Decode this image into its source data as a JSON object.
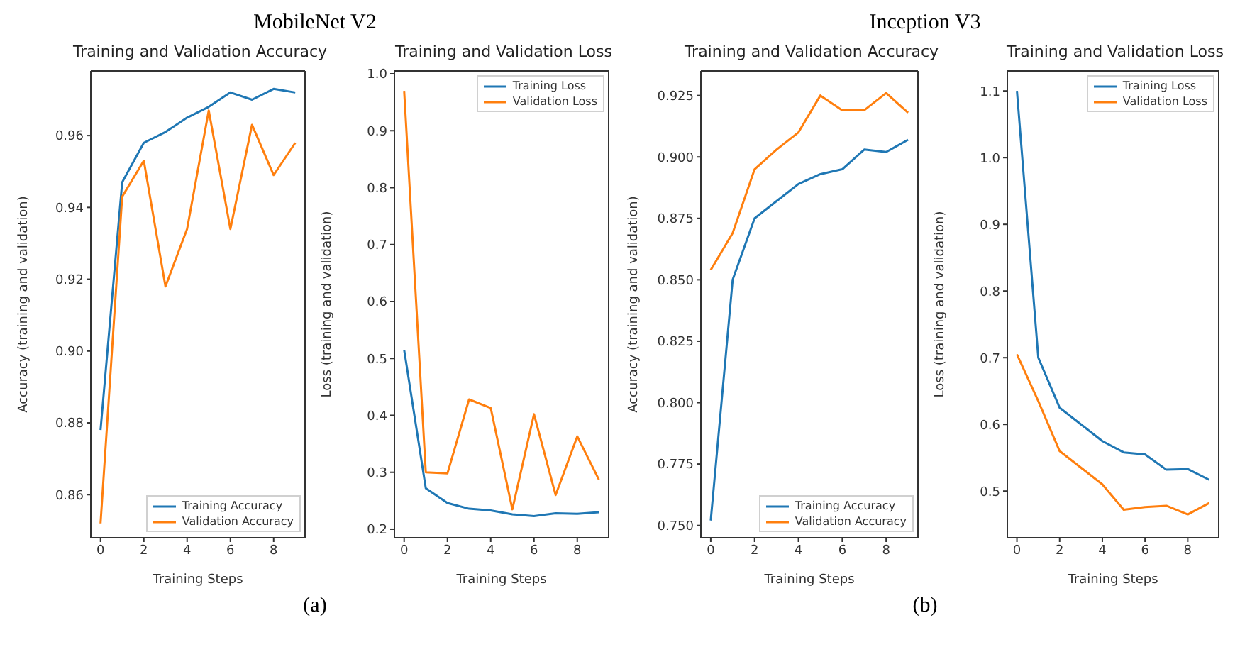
{
  "chart_data": [
    {
      "type": "line",
      "title": "Training and Validation Accuracy",
      "xlabel": "Training Steps",
      "ylabel": "Accuracy (training and validation)",
      "annotations": [
        "MobileNet V2",
        "(a)"
      ],
      "x": [
        0,
        1,
        2,
        3,
        4,
        5,
        6,
        7,
        8,
        9
      ],
      "series": [
        {
          "name": "Training Accuracy",
          "color": "#1f77b4",
          "values": [
            0.878,
            0.947,
            0.958,
            0.961,
            0.965,
            0.968,
            0.972,
            0.97,
            0.973,
            0.972
          ]
        },
        {
          "name": "Validation Accuracy",
          "color": "#ff7f0e",
          "values": [
            0.852,
            0.943,
            0.953,
            0.918,
            0.934,
            0.967,
            0.934,
            0.963,
            0.949,
            0.958
          ]
        }
      ],
      "xlim": [
        -0.45,
        9.45
      ],
      "xticks": [
        0,
        2,
        4,
        6,
        8
      ],
      "ylim": [
        0.848,
        0.978
      ],
      "yticks": [
        0.86,
        0.88,
        {
          "value": 0.9,
          "label": "0.90"
        },
        0.92,
        0.94,
        0.96
      ],
      "grid": false,
      "legend": "bottom right",
      "marker": "none",
      "line_style": "solid"
    },
    {
      "type": "line",
      "title": "Training and Validation Loss",
      "xlabel": "Training Steps",
      "ylabel": "Loss (training and validation)",
      "x": [
        0,
        1,
        2,
        3,
        4,
        5,
        6,
        7,
        8,
        9
      ],
      "series": [
        {
          "name": "Training Loss",
          "color": "#1f77b4",
          "values": [
            0.515,
            0.272,
            0.246,
            0.236,
            0.233,
            0.226,
            0.223,
            0.228,
            0.227,
            0.23
          ]
        },
        {
          "name": "Validation Loss",
          "color": "#ff7f0e",
          "values": [
            0.97,
            0.3,
            0.298,
            0.428,
            0.413,
            0.235,
            0.402,
            0.26,
            0.363,
            0.287
          ]
        }
      ],
      "xlim": [
        -0.45,
        9.45
      ],
      "xticks": [
        0,
        2,
        4,
        6,
        8
      ],
      "ylim": [
        0.185,
        1.005
      ],
      "yticks": [
        0.2,
        0.3,
        0.4,
        0.5,
        0.6,
        0.7,
        0.8,
        0.9,
        {
          "value": 1,
          "label": "1.0"
        }
      ],
      "grid": false,
      "legend": "top right",
      "marker": "none",
      "line_style": "solid"
    },
    {
      "type": "line",
      "title": "Training and Validation Accuracy",
      "xlabel": "Training Steps",
      "ylabel": "Accuracy (training and validation)",
      "annotations": [
        "Inception V3",
        "(b)"
      ],
      "x": [
        0,
        1,
        2,
        3,
        4,
        5,
        6,
        7,
        8,
        9
      ],
      "series": [
        {
          "name": "Training Accuracy",
          "color": "#1f77b4",
          "values": [
            0.752,
            0.85,
            0.875,
            0.882,
            0.889,
            0.893,
            0.895,
            0.903,
            0.902,
            0.907
          ]
        },
        {
          "name": "Validation Accuracy",
          "color": "#ff7f0e",
          "values": [
            0.854,
            0.869,
            0.895,
            0.903,
            0.91,
            0.925,
            0.919,
            0.919,
            0.926,
            0.918
          ]
        }
      ],
      "xlim": [
        -0.45,
        9.45
      ],
      "xticks": [
        0,
        2,
        4,
        6,
        8
      ],
      "ylim": [
        0.745,
        0.935
      ],
      "yticks": [
        {
          "value": 0.75,
          "label": "0.750"
        },
        0.775,
        {
          "value": 0.8,
          "label": "0.800"
        },
        0.825,
        {
          "value": 0.85,
          "label": "0.850"
        },
        0.875,
        {
          "value": 0.9,
          "label": "0.900"
        },
        0.925
      ],
      "grid": false,
      "legend": "bottom right",
      "marker": "none",
      "line_style": "solid"
    },
    {
      "type": "line",
      "title": "Training and Validation Loss",
      "xlabel": "Training Steps",
      "ylabel": "Loss (training and validation)",
      "x": [
        0,
        1,
        2,
        3,
        4,
        5,
        6,
        7,
        8,
        9
      ],
      "series": [
        {
          "name": "Training Loss",
          "color": "#1f77b4",
          "values": [
            1.1,
            0.7,
            0.625,
            0.6,
            0.575,
            0.558,
            0.555,
            0.532,
            0.533,
            0.517
          ]
        },
        {
          "name": "Validation Loss",
          "color": "#ff7f0e",
          "values": [
            0.705,
            0.635,
            0.56,
            0.535,
            0.51,
            0.472,
            0.476,
            0.478,
            0.465,
            0.482
          ]
        }
      ],
      "xlim": [
        -0.45,
        9.45
      ],
      "xticks": [
        0,
        2,
        4,
        6,
        8
      ],
      "ylim": [
        0.43,
        1.13
      ],
      "yticks": [
        0.5,
        0.6,
        0.7,
        0.8,
        0.9,
        {
          "value": 1,
          "label": "1.0"
        },
        1.1
      ],
      "grid": false,
      "legend": "top right",
      "marker": "none",
      "line_style": "solid"
    }
  ]
}
